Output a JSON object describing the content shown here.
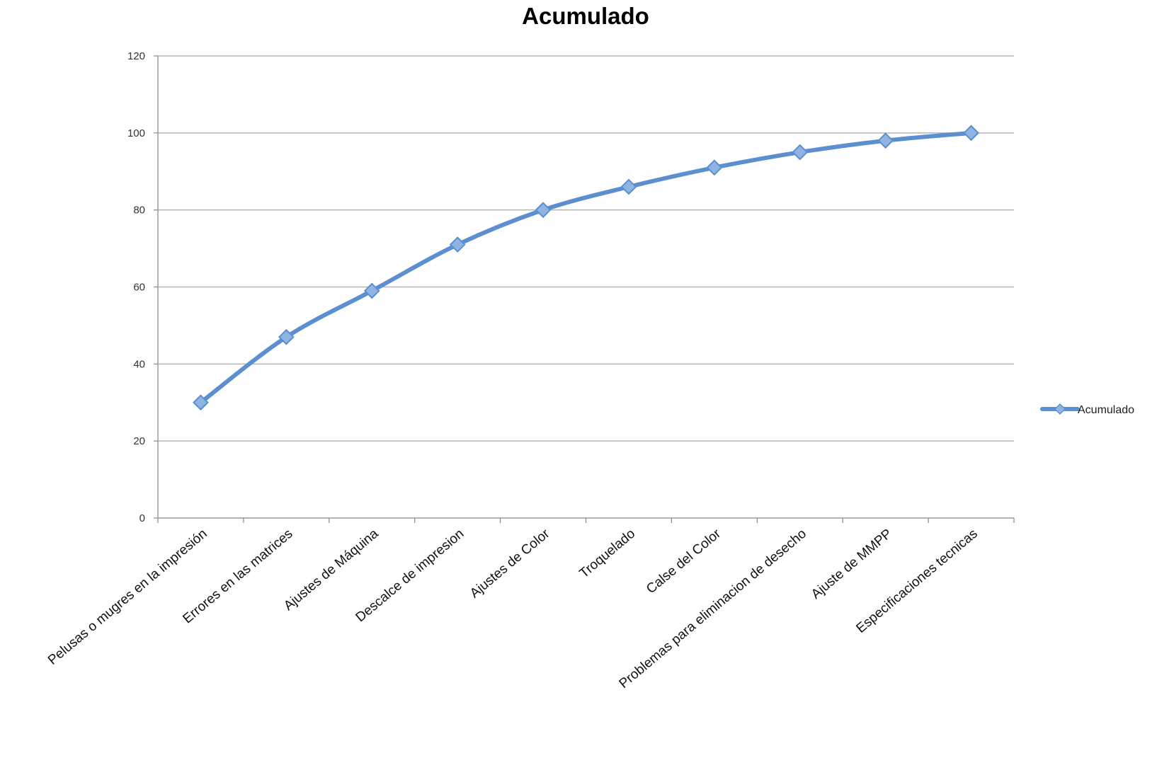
{
  "chart_data": {
    "type": "line",
    "title": "Acumulado",
    "xlabel": "",
    "ylabel": "",
    "categories": [
      "Pelusas o mugres en la impresión",
      "Errores en las matrices",
      "Ajustes de Máquina",
      "Descalce de impresion",
      "Ajustes de Color",
      "Troquelado",
      "Calse del Color",
      "Problemas para eliminacion de desecho",
      "Ajuste de MMPP",
      "Especificaciones tecnicas"
    ],
    "series": [
      {
        "name": "Acumulado",
        "values": [
          30,
          47,
          59,
          71,
          80,
          86,
          91,
          95,
          98,
          100
        ]
      }
    ],
    "ylim": [
      0,
      120
    ],
    "yticks": [
      0,
      20,
      40,
      60,
      80,
      100,
      120
    ],
    "grid": true,
    "legend": "right",
    "line_color": "#5b8fcf",
    "grid_color": "#b5b5b5"
  }
}
